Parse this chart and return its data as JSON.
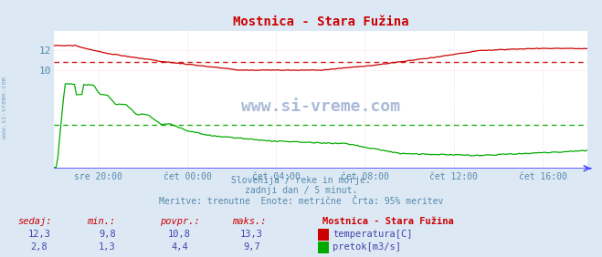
{
  "title": "Mostnica - Stara Fužina",
  "title_color": "#cc0000",
  "bg_color": "#dce9f5",
  "plot_bg_color": "#ffffff",
  "grid_color_v": "#ffcccc",
  "grid_color_h": "#ffcccc",
  "axis_color": "#4444ff",
  "tick_color": "#5588aa",
  "watermark": "www.si-vreme.com",
  "subtitle_lines": [
    "Slovenija / reke in morje.",
    "zadnji dan / 5 minut.",
    "Meritve: trenutne  Enote: metrične  Črta: 95% meritev"
  ],
  "subtitle_color": "#5588aa",
  "x_ticks_labels": [
    "sre 20:00",
    "čet 00:00",
    "čet 04:00",
    "čet 08:00",
    "čet 12:00",
    "čet 16:00"
  ],
  "x_ticks_pos_frac": [
    0.0833,
    0.25,
    0.4167,
    0.5833,
    0.75,
    0.9167
  ],
  "ylim": [
    0,
    14
  ],
  "y_ticks": [
    10,
    12
  ],
  "temp_color": "#cc0000",
  "flow_color": "#00aa00",
  "temp_avg": 10.8,
  "flow_avg": 4.4,
  "temp_max": 13.3,
  "flow_max": 9.7,
  "temp_min": 9.8,
  "flow_min": 1.3,
  "temp_now": 12.3,
  "flow_now": 2.8,
  "legend_title": "Mostnica - Stara Fužina",
  "legend_color": "#cc0000",
  "table_header_color": "#cc0000",
  "table_value_color": "#4444aa",
  "footer_label_color": "#cc0000",
  "left_watermark_color": "#5588aa"
}
